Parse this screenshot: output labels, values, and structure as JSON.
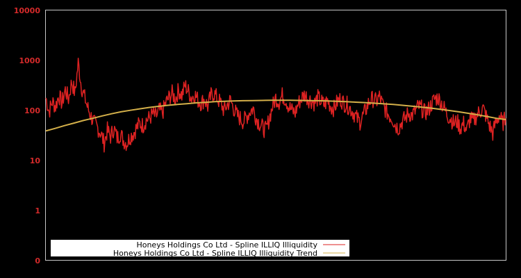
{
  "chart_data": {
    "type": "line",
    "title": "",
    "xlabel": "",
    "ylabel": "",
    "yscale": "log",
    "ylim": [
      0.1,
      10000
    ],
    "yticks": [
      {
        "label": "10000",
        "value": 10000
      },
      {
        "label": "1000",
        "value": 1000
      },
      {
        "label": "100",
        "value": 100
      },
      {
        "label": "10",
        "value": 10
      },
      {
        "label": "1",
        "value": 1
      },
      {
        "label": "0",
        "value": 0.1
      }
    ],
    "grid": false,
    "legend_position": "bottom-left inside",
    "x_index_range": [
      0,
      132
    ],
    "series": [
      {
        "name": "Honeys Holdings Co Ltd - Spline ILLIQ Illiquidity",
        "color": "#dd2222",
        "values": [
          180,
          95,
          150,
          120,
          200,
          140,
          260,
          170,
          380,
          220,
          900,
          300,
          180,
          110,
          75,
          55,
          45,
          35,
          22,
          40,
          30,
          45,
          28,
          35,
          25,
          22,
          30,
          35,
          45,
          55,
          50,
          65,
          70,
          85,
          75,
          100,
          90,
          140,
          180,
          220,
          170,
          260,
          200,
          320,
          240,
          180,
          210,
          160,
          140,
          170,
          120,
          200,
          220,
          170,
          140,
          100,
          130,
          160,
          110,
          80,
          70,
          60,
          75,
          95,
          110,
          70,
          55,
          45,
          40,
          70,
          120,
          180,
          150,
          200,
          170,
          120,
          100,
          90,
          140,
          180,
          210,
          170,
          160,
          140,
          180,
          150,
          130,
          160,
          120,
          110,
          150,
          170,
          140,
          130,
          110,
          90,
          70,
          60,
          80,
          110,
          160,
          170,
          150,
          190,
          130,
          100,
          80,
          70,
          50,
          45,
          60,
          70,
          90,
          80,
          95,
          120,
          110,
          90,
          100,
          130,
          170,
          180,
          150,
          110,
          80,
          70,
          55,
          60,
          45,
          55,
          40,
          70,
          60,
          80,
          95,
          110,
          75,
          50,
          35,
          60,
          80,
          55,
          70
        ],
        "approx_range": [
          16,
          1000
        ]
      },
      {
        "name": "Honeys Holdings Co Ltd - Spline ILLIQ Illiquidity Trend",
        "color": "#d4b04a",
        "values": [
          39,
          44,
          50,
          56,
          63,
          70,
          78,
          86,
          94,
          101,
          108,
          115,
          121,
          127,
          132,
          137,
          142,
          146,
          150,
          153,
          155,
          157,
          158,
          159,
          160,
          160,
          160,
          159,
          158,
          157,
          155,
          153,
          150,
          147,
          144,
          140,
          136,
          132,
          127,
          122,
          117,
          112,
          106,
          100,
          94,
          88,
          82,
          76,
          70,
          66
        ]
      }
    ]
  },
  "legend": {
    "items": [
      {
        "label": "Honeys Holdings Co Ltd - Spline ILLIQ Illiquidity",
        "color": "#dd2222"
      },
      {
        "label": "Honeys Holdings Co Ltd - Spline ILLIQ Illiquidity Trend",
        "color": "#d4b04a"
      }
    ]
  },
  "colors": {
    "background": "#000000",
    "frame": "#c8c8c8",
    "tick_label": "#d42a2a",
    "legend_bg": "#ffffff"
  }
}
